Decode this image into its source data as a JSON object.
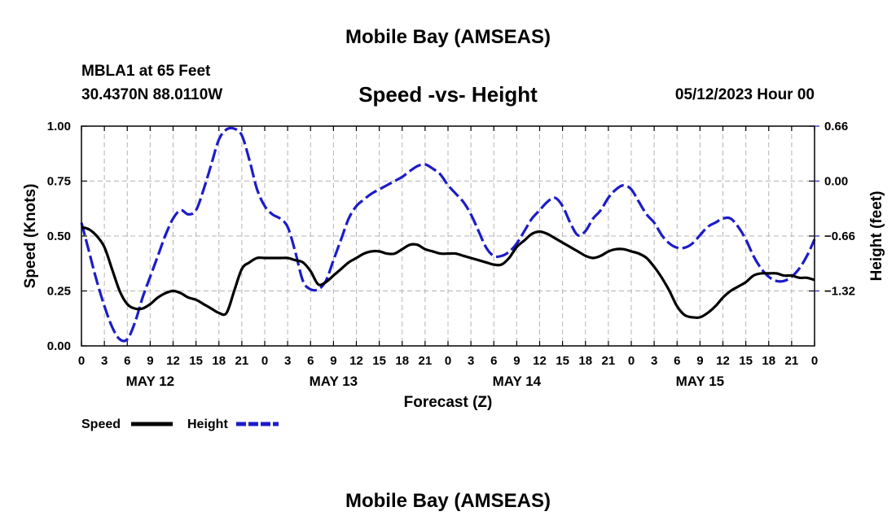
{
  "header": {
    "title": "Mobile Bay (AMSEAS)",
    "station": "MBLA1 at 65 Feet",
    "coordinates": "30.4370N  88.0110W",
    "subtitle": "Speed -vs- Height",
    "datetime": "05/12/2023 Hour 00"
  },
  "footer": {
    "title": "Mobile Bay (AMSEAS)"
  },
  "chart_data": {
    "type": "line",
    "title": "Speed -vs- Height",
    "xlabel": "Forecast (Z)",
    "ylabel": "Speed (Knots)",
    "y2label": "Height (feet)",
    "xlim": [
      0,
      96
    ],
    "ylim": [
      0,
      1
    ],
    "y2lim": [
      -1.98,
      0.66
    ],
    "grid": true,
    "legend_position": "bottom-left",
    "xtick_labels": [
      "0",
      "3",
      "6",
      "9",
      "12",
      "15",
      "18",
      "21",
      "0",
      "3",
      "6",
      "9",
      "12",
      "15",
      "18",
      "21",
      "0",
      "3",
      "6",
      "9",
      "12",
      "15",
      "18",
      "21",
      "0",
      "3",
      "6",
      "9",
      "12",
      "15",
      "18",
      "21",
      "0"
    ],
    "day_labels": [
      {
        "label": "MAY 12",
        "x": 9
      },
      {
        "label": "MAY 13",
        "x": 33
      },
      {
        "label": "MAY 14",
        "x": 57
      },
      {
        "label": "MAY 15",
        "x": 81
      }
    ],
    "yticks": [
      0,
      0.25,
      0.5,
      0.75,
      1.0
    ],
    "ytick_labels": [
      "0.00",
      "0.25",
      "0.50",
      "0.75",
      "1.00"
    ],
    "y2ticks": [
      -1.32,
      -0.66,
      0.0,
      0.66
    ],
    "y2tick_labels": [
      "−1.32",
      "−0.66",
      "0.00",
      "0.66"
    ],
    "series": [
      {
        "name": "Speed",
        "axis": "left",
        "color": "#000000",
        "dashed": false,
        "x": [
          0,
          1,
          2,
          3,
          4,
          5,
          6,
          7,
          8,
          9,
          10,
          11,
          12,
          13,
          14,
          15,
          16,
          17,
          18,
          19,
          20,
          21,
          22,
          23,
          24,
          25,
          26,
          27,
          28,
          29,
          30,
          31,
          32,
          33,
          34,
          35,
          36,
          37,
          38,
          39,
          40,
          41,
          42,
          43,
          44,
          45,
          46,
          47,
          48,
          49,
          50,
          51,
          52,
          53,
          54,
          55,
          56,
          57,
          58,
          59,
          60,
          61,
          62,
          63,
          64,
          65,
          66,
          67,
          68,
          69,
          70,
          71,
          72,
          73,
          74,
          75,
          76,
          77,
          78,
          79,
          80,
          81,
          82,
          83,
          84,
          85,
          86,
          87,
          88,
          89,
          90,
          91,
          92,
          93,
          94,
          95,
          96
        ],
        "values": [
          0.54,
          0.53,
          0.5,
          0.45,
          0.35,
          0.25,
          0.19,
          0.17,
          0.17,
          0.19,
          0.22,
          0.24,
          0.25,
          0.24,
          0.22,
          0.21,
          0.19,
          0.17,
          0.15,
          0.15,
          0.25,
          0.35,
          0.38,
          0.4,
          0.4,
          0.4,
          0.4,
          0.4,
          0.39,
          0.38,
          0.34,
          0.28,
          0.29,
          0.32,
          0.35,
          0.38,
          0.4,
          0.42,
          0.43,
          0.43,
          0.42,
          0.42,
          0.44,
          0.46,
          0.46,
          0.44,
          0.43,
          0.42,
          0.42,
          0.42,
          0.41,
          0.4,
          0.39,
          0.38,
          0.37,
          0.37,
          0.4,
          0.45,
          0.48,
          0.51,
          0.52,
          0.51,
          0.49,
          0.47,
          0.45,
          0.43,
          0.41,
          0.4,
          0.41,
          0.43,
          0.44,
          0.44,
          0.43,
          0.42,
          0.4,
          0.36,
          0.31,
          0.25,
          0.18,
          0.14,
          0.13,
          0.13,
          0.15,
          0.18,
          0.22,
          0.25,
          0.27,
          0.29,
          0.32,
          0.33,
          0.33,
          0.33,
          0.32,
          0.32,
          0.31,
          0.31,
          0.3
        ]
      },
      {
        "name": "Height",
        "axis": "right",
        "color": "#1c1cc8",
        "dashed": true,
        "x": [
          0,
          1,
          2,
          3,
          4,
          5,
          6,
          7,
          8,
          9,
          10,
          11,
          12,
          13,
          14,
          15,
          16,
          17,
          18,
          19,
          20,
          21,
          22,
          23,
          24,
          25,
          26,
          27,
          28,
          29,
          30,
          31,
          32,
          33,
          34,
          35,
          36,
          37,
          38,
          39,
          40,
          41,
          42,
          43,
          44,
          45,
          46,
          47,
          48,
          49,
          50,
          51,
          52,
          53,
          54,
          55,
          56,
          57,
          58,
          59,
          60,
          61,
          62,
          63,
          64,
          65,
          66,
          67,
          68,
          69,
          70,
          71,
          72,
          73,
          74,
          75,
          76,
          77,
          78,
          79,
          80,
          81,
          82,
          83,
          84,
          85,
          86,
          87,
          88,
          89,
          90,
          91,
          92,
          93,
          94,
          95,
          96
        ],
        "values": [
          -0.5,
          -0.85,
          -1.2,
          -1.5,
          -1.75,
          -1.9,
          -1.9,
          -1.7,
          -1.4,
          -1.15,
          -0.9,
          -0.65,
          -0.45,
          -0.35,
          -0.4,
          -0.35,
          -0.1,
          0.2,
          0.5,
          0.62,
          0.63,
          0.55,
          0.25,
          -0.1,
          -0.3,
          -0.4,
          -0.45,
          -0.55,
          -0.85,
          -1.2,
          -1.3,
          -1.3,
          -1.2,
          -0.95,
          -0.7,
          -0.45,
          -0.3,
          -0.22,
          -0.15,
          -0.1,
          -0.05,
          0.0,
          0.05,
          0.12,
          0.18,
          0.2,
          0.15,
          0.08,
          -0.05,
          -0.15,
          -0.25,
          -0.4,
          -0.6,
          -0.8,
          -0.9,
          -0.9,
          -0.85,
          -0.75,
          -0.6,
          -0.45,
          -0.35,
          -0.25,
          -0.2,
          -0.3,
          -0.5,
          -0.65,
          -0.6,
          -0.45,
          -0.35,
          -0.2,
          -0.1,
          -0.05,
          -0.1,
          -0.25,
          -0.4,
          -0.5,
          -0.65,
          -0.75,
          -0.8,
          -0.8,
          -0.75,
          -0.65,
          -0.55,
          -0.5,
          -0.45,
          -0.45,
          -0.55,
          -0.7,
          -0.9,
          -1.05,
          -1.15,
          -1.2,
          -1.2,
          -1.15,
          -1.05,
          -0.9,
          -0.7
        ]
      }
    ]
  },
  "legend": {
    "items": [
      {
        "name": "Speed",
        "color": "#000000",
        "dashed": false
      },
      {
        "name": "Height",
        "color": "#1c1cc8",
        "dashed": true
      }
    ]
  }
}
